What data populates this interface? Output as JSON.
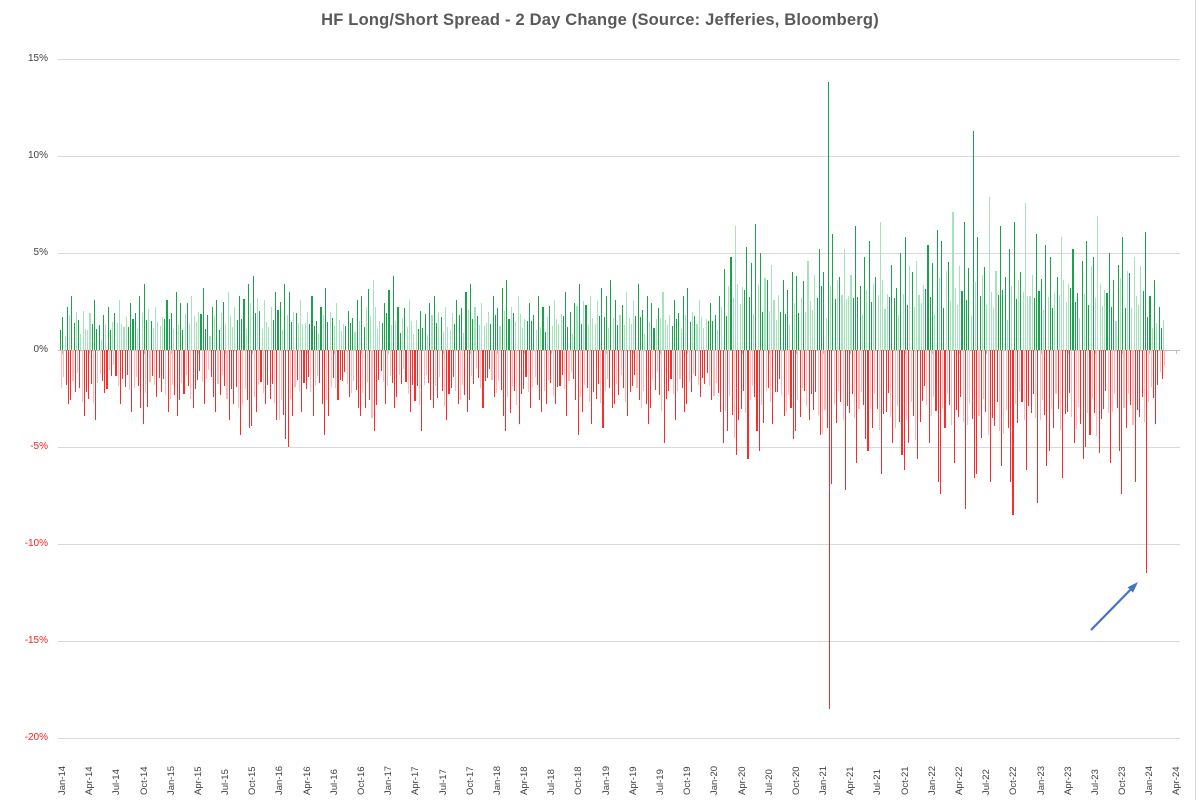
{
  "title": "HF Long/Short Spread - 2 Day Change (Source: Jefferies, Bloomberg)",
  "colors": {
    "title": "#595959",
    "gridline": "#d9d9d9",
    "axis_line": "#bfbfbf",
    "tick_label": "#404040",
    "tick_label_negative": "#ff2020",
    "bar_green_dark": "#17a24b",
    "bar_green_light": "#a5e3bc",
    "bar_red_dark": "#fb2c2c",
    "bar_red_light": "#ffb9b9",
    "annotation_arrow": "#4472c4",
    "chart_border": "#d8d8d8"
  },
  "chart_data": {
    "type": "bar",
    "title": "HF Long/Short Spread - 2 Day Change (Source: Jefferies, Bloomberg)",
    "xlabel": "",
    "ylabel": "",
    "ylim": [
      -20,
      15
    ],
    "grid": "horizontal",
    "legend": "none",
    "y_axis": {
      "ticks": [
        {
          "label": "15%",
          "value": 15
        },
        {
          "label": "10%",
          "value": 10
        },
        {
          "label": "5%",
          "value": 5
        },
        {
          "label": "0%",
          "value": 0
        },
        {
          "label": "-5%",
          "value": -5
        },
        {
          "label": "-10%",
          "value": -10
        },
        {
          "label": "-15%",
          "value": -15
        },
        {
          "label": "-20%",
          "value": -20
        }
      ]
    },
    "x_axis": {
      "labels": [
        "Jan-14",
        "Apr-14",
        "Jul-14",
        "Oct-14",
        "Jan-15",
        "Apr-15",
        "Jul-15",
        "Oct-15",
        "Jan-16",
        "Apr-16",
        "Jul-16",
        "Oct-16",
        "Jan-17",
        "Apr-17",
        "Jul-17",
        "Oct-17",
        "Jan-18",
        "Apr-18",
        "Jul-18",
        "Oct-18",
        "Jan-19",
        "Apr-19",
        "Jul-19",
        "Oct-19",
        "Jan-20",
        "Apr-20",
        "Jul-20",
        "Oct-20",
        "Jan-21",
        "Apr-21",
        "Jul-21",
        "Oct-21",
        "Jan-22",
        "Apr-22",
        "Jul-22",
        "Oct-22",
        "Jan-23",
        "Apr-23",
        "Jul-23",
        "Oct-23",
        "Jan-24",
        "Apr-24"
      ]
    },
    "series_description": "Daily 2-day change of hedge-fund long/short spread, Jan-2014 to Feb-2024; positive bars green, negative bars red. Values below are the monthly max-up / max-down envelope in percent.",
    "monthly_envelope": [
      [
        "Jan-14",
        2.2,
        -2.8
      ],
      [
        "Feb-14",
        2.8,
        -2.6
      ],
      [
        "Mar-14",
        2.0,
        -3.4
      ],
      [
        "Apr-14",
        2.6,
        -3.6
      ],
      [
        "May-14",
        1.8,
        -2.2
      ],
      [
        "Jun-14",
        2.2,
        -2.0
      ],
      [
        "Jul-14",
        2.6,
        -2.8
      ],
      [
        "Aug-14",
        2.4,
        -3.2
      ],
      [
        "Sep-14",
        2.8,
        -3.0
      ],
      [
        "Oct-14",
        3.4,
        -3.8
      ],
      [
        "Nov-14",
        2.2,
        -2.4
      ],
      [
        "Dec-14",
        2.6,
        -3.2
      ],
      [
        "Jan-15",
        3.0,
        -3.4
      ],
      [
        "Feb-15",
        2.4,
        -2.6
      ],
      [
        "Mar-15",
        2.8,
        -3.0
      ],
      [
        "Apr-15",
        3.2,
        -2.8
      ],
      [
        "May-15",
        2.2,
        -2.4
      ],
      [
        "Jun-15",
        2.6,
        -3.2
      ],
      [
        "Jul-15",
        3.0,
        -3.6
      ],
      [
        "Aug-15",
        2.8,
        -4.4
      ],
      [
        "Sep-15",
        3.4,
        -4.0
      ],
      [
        "Oct-15",
        3.8,
        -3.9
      ],
      [
        "Nov-15",
        2.6,
        -2.8
      ],
      [
        "Dec-15",
        3.0,
        -3.6
      ],
      [
        "Jan-16",
        3.4,
        -4.6
      ],
      [
        "Feb-16",
        3.0,
        -5.0
      ],
      [
        "Mar-16",
        2.6,
        -3.2
      ],
      [
        "Apr-16",
        2.8,
        -3.4
      ],
      [
        "May-16",
        2.2,
        -2.8
      ],
      [
        "Jun-16",
        3.2,
        -4.4
      ],
      [
        "Jul-16",
        2.4,
        -2.6
      ],
      [
        "Aug-16",
        2.0,
        -2.4
      ],
      [
        "Sep-16",
        2.6,
        -3.0
      ],
      [
        "Oct-16",
        2.8,
        -3.4
      ],
      [
        "Nov-16",
        3.6,
        -4.2
      ],
      [
        "Dec-16",
        2.4,
        -2.8
      ],
      [
        "Jan-17",
        3.8,
        -3.0
      ],
      [
        "Feb-17",
        2.2,
        -2.4
      ],
      [
        "Mar-17",
        2.6,
        -3.2
      ],
      [
        "Apr-17",
        2.0,
        -4.2
      ],
      [
        "May-17",
        2.4,
        -2.6
      ],
      [
        "Jun-17",
        2.8,
        -3.0
      ],
      [
        "Jul-17",
        2.2,
        -3.6
      ],
      [
        "Aug-17",
        2.6,
        -2.8
      ],
      [
        "Sep-17",
        3.0,
        -3.2
      ],
      [
        "Oct-17",
        3.4,
        -2.6
      ],
      [
        "Nov-17",
        2.4,
        -3.0
      ],
      [
        "Dec-17",
        2.8,
        -2.4
      ],
      [
        "Jan-18",
        3.2,
        -3.4
      ],
      [
        "Feb-18",
        3.6,
        -4.2
      ],
      [
        "Mar-18",
        2.8,
        -3.8
      ],
      [
        "Apr-18",
        2.4,
        -3.0
      ],
      [
        "May-18",
        2.8,
        -2.6
      ],
      [
        "Jun-18",
        2.2,
        -3.2
      ],
      [
        "Jul-18",
        2.6,
        -2.8
      ],
      [
        "Aug-18",
        3.0,
        -3.4
      ],
      [
        "Sep-18",
        2.4,
        -2.6
      ],
      [
        "Oct-18",
        3.4,
        -4.4
      ],
      [
        "Nov-18",
        2.8,
        -3.8
      ],
      [
        "Dec-18",
        3.2,
        -4.0
      ],
      [
        "Jan-19",
        3.6,
        -3.0
      ],
      [
        "Feb-19",
        2.6,
        -2.8
      ],
      [
        "Mar-19",
        3.0,
        -3.4
      ],
      [
        "Apr-19",
        3.4,
        -2.6
      ],
      [
        "May-19",
        2.8,
        -3.8
      ],
      [
        "Jun-19",
        2.4,
        -3.0
      ],
      [
        "Jul-19",
        3.0,
        -4.8
      ],
      [
        "Aug-19",
        2.6,
        -3.6
      ],
      [
        "Sep-19",
        2.8,
        -3.2
      ],
      [
        "Oct-19",
        3.2,
        -2.8
      ],
      [
        "Nov-19",
        2.6,
        -2.4
      ],
      [
        "Dec-19",
        2.4,
        -2.6
      ],
      [
        "Jan-20",
        2.8,
        -3.2
      ],
      [
        "Feb-20",
        4.2,
        -4.8
      ],
      [
        "Mar-20",
        6.4,
        -5.4
      ],
      [
        "Apr-20",
        5.3,
        -5.6
      ],
      [
        "May-20",
        6.5,
        -4.2
      ],
      [
        "Jun-20",
        5.0,
        -5.2
      ],
      [
        "Jul-20",
        4.4,
        -3.8
      ],
      [
        "Aug-20",
        3.6,
        -3.4
      ],
      [
        "Sep-20",
        4.0,
        -4.6
      ],
      [
        "Oct-20",
        3.8,
        -4.2
      ],
      [
        "Nov-20",
        4.6,
        -3.6
      ],
      [
        "Dec-20",
        5.2,
        -4.4
      ],
      [
        "Jan-21",
        13.8,
        -18.5
      ],
      [
        "Feb-21",
        6.0,
        -6.9
      ],
      [
        "Mar-21",
        5.2,
        -7.2
      ],
      [
        "Apr-21",
        6.4,
        -5.8
      ],
      [
        "May-21",
        4.8,
        -4.6
      ],
      [
        "Jun-21",
        5.6,
        -5.2
      ],
      [
        "Jul-21",
        6.6,
        -6.4
      ],
      [
        "Aug-21",
        4.4,
        -4.8
      ],
      [
        "Sep-21",
        5.0,
        -5.4
      ],
      [
        "Oct-21",
        5.8,
        -6.2
      ],
      [
        "Nov-21",
        4.6,
        -5.6
      ],
      [
        "Dec-21",
        5.4,
        -4.8
      ],
      [
        "Jan-22",
        6.2,
        -6.8
      ],
      [
        "Feb-22",
        5.6,
        -7.4
      ],
      [
        "Mar-22",
        7.1,
        -5.8
      ],
      [
        "Apr-22",
        6.6,
        -8.2
      ],
      [
        "May-22",
        11.3,
        -6.6
      ],
      [
        "Jun-22",
        5.8,
        -6.4
      ],
      [
        "Jul-22",
        7.9,
        -6.8
      ],
      [
        "Aug-22",
        6.4,
        -6.0
      ],
      [
        "Sep-22",
        5.2,
        -6.8
      ],
      [
        "Oct-22",
        6.6,
        -8.5
      ],
      [
        "Nov-22",
        7.6,
        -6.2
      ],
      [
        "Dec-22",
        6.0,
        -7.9
      ],
      [
        "Jan-23",
        5.4,
        -6.0
      ],
      [
        "Feb-23",
        4.8,
        -5.2
      ],
      [
        "Mar-23",
        5.8,
        -6.6
      ],
      [
        "Apr-23",
        5.2,
        -4.8
      ],
      [
        "May-23",
        4.6,
        -5.6
      ],
      [
        "Jun-23",
        5.6,
        -5.0
      ],
      [
        "Jul-23",
        6.9,
        -5.3
      ],
      [
        "Aug-23",
        5.0,
        -5.8
      ],
      [
        "Sep-23",
        4.4,
        -5.2
      ],
      [
        "Oct-23",
        5.8,
        -7.4
      ],
      [
        "Nov-23",
        4.8,
        -6.8
      ],
      [
        "Dec-23",
        6.1,
        -11.5
      ],
      [
        "Jan-24",
        3.6,
        -3.8
      ],
      [
        "Feb-24",
        2.2,
        -1.8
      ]
    ],
    "notable_extremes": [
      {
        "when": "late Jan-21",
        "up": 13.8,
        "down": -18.5
      },
      {
        "when": "May-22",
        "up": 11.3
      },
      {
        "when": "Oct-22",
        "down": -8.5
      },
      {
        "when": "Dec-23 / Jan-24",
        "down": -11.5,
        "annotated_with_arrow": true
      }
    ],
    "annotations": [
      {
        "type": "arrow",
        "color": "#4472c4",
        "target": "large negative spike of about -11.5% just before Jan-24"
      }
    ],
    "render_hints": {
      "pos_fracs": [
        [
          0.55,
          0.75,
          0.35,
          1.0
        ],
        [
          0.6,
          1.0,
          0.45,
          0.7
        ],
        [
          0.8,
          0.5,
          1.0,
          0.6
        ],
        [
          0.45,
          0.7,
          0.55,
          1.0
        ]
      ],
      "neg_fracs": [
        [
          0.7,
          0.5,
          0.65,
          1.0
        ],
        [
          1.0,
          0.6,
          0.8,
          0.45
        ],
        [
          0.55,
          0.75,
          1.0,
          0.6
        ],
        [
          0.65,
          0.45,
          0.7,
          1.0
        ]
      ],
      "shade_cycle": [
        [
          "d",
          "l",
          "d",
          "l",
          "l",
          "d",
          "d",
          "d"
        ],
        [
          "l",
          "d",
          "d",
          "l",
          "d",
          "d",
          "l",
          "l"
        ],
        [
          "d",
          "d",
          "l",
          "l",
          "l",
          "d",
          "l",
          "d"
        ],
        [
          "l",
          "d",
          "l",
          "d",
          "d",
          "l",
          "d",
          "d"
        ]
      ]
    }
  }
}
